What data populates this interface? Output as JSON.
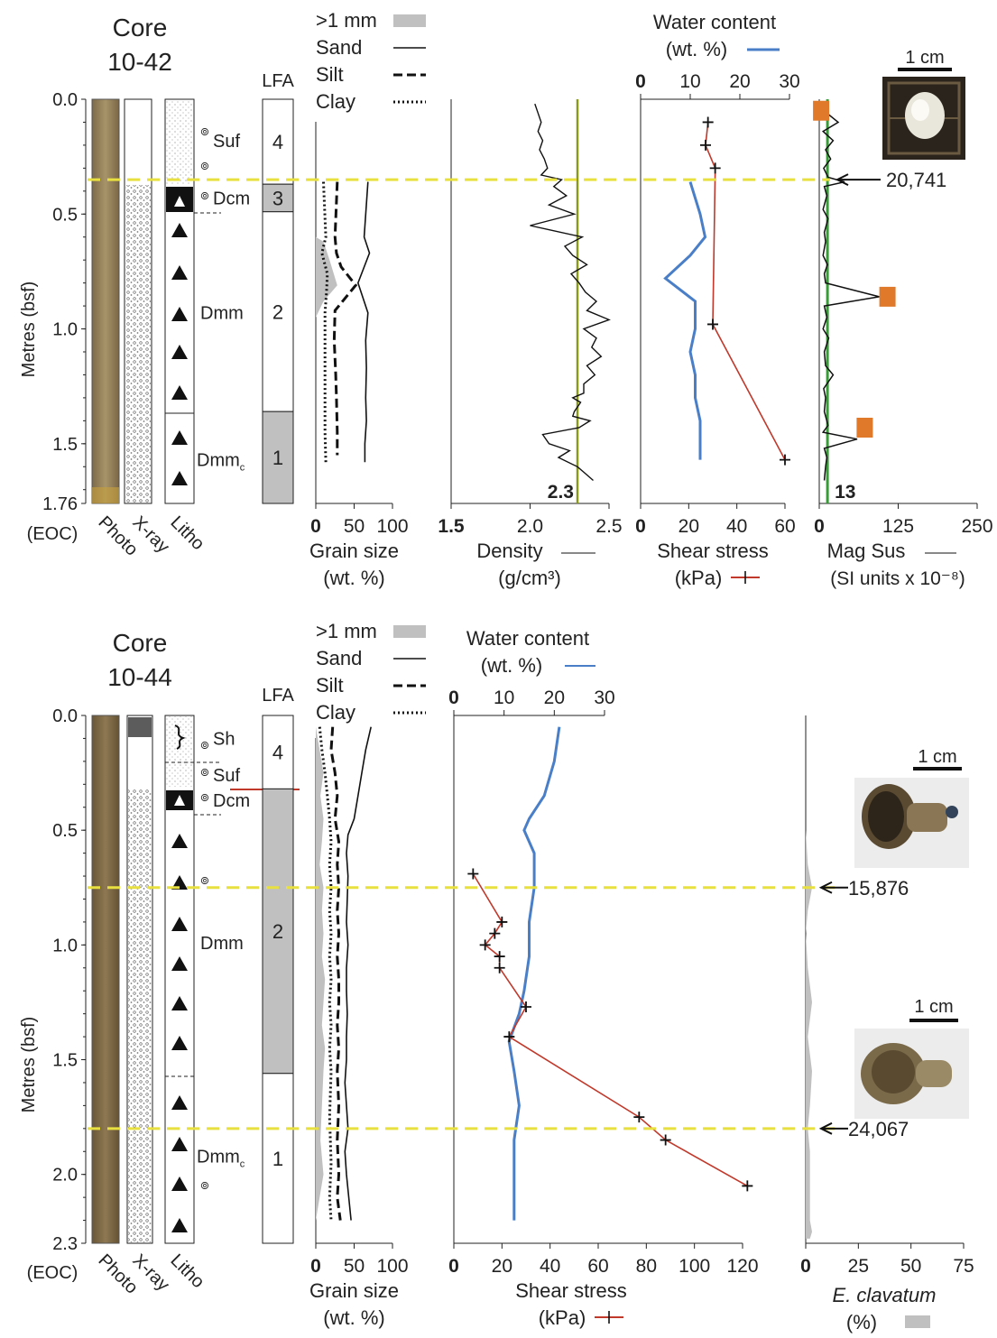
{
  "colors": {
    "water": "#4a7fc8",
    "shear": "#c0392b",
    "density": "#111111",
    "density_ref": "#8a9a1a",
    "magsus_ref": "#3a9a3a",
    "highlight": "#e8e040",
    "gravel": "#c0c0c0",
    "lfa_grey": "#c0c0c0",
    "age_box": "#e07a2a",
    "sed_dark": "#8a7650"
  },
  "panels": [
    {
      "title": "Core\n10-42",
      "core_title_lines": [
        "Core",
        "10-42"
      ],
      "depth_max": 1.76,
      "depth_ticks": [
        "0.0",
        "0.5",
        "1.0",
        "1.5",
        "1.76"
      ],
      "eoc_label": "(EOC)",
      "ylabel": "Metres (bsf)",
      "column_labels": [
        "Photo",
        "X-ray",
        "Litho"
      ],
      "lfa_header": "LFA",
      "facies_labels": [
        {
          "text": "Suf",
          "depth": 0.18
        },
        {
          "text": "Dcm",
          "depth": 0.43
        },
        {
          "text": "Dmm",
          "depth": 0.93
        },
        {
          "text": "Dmm",
          "sub": "c",
          "depth": 1.57
        }
      ],
      "lfa_units": [
        {
          "label": "4",
          "top": 0.0,
          "bottom": 0.37,
          "grey": false
        },
        {
          "label": "3",
          "top": 0.37,
          "bottom": 0.49,
          "grey": true
        },
        {
          "label": "2",
          "top": 0.49,
          "bottom": 1.36,
          "grey": false
        },
        {
          "label": "1",
          "top": 1.36,
          "bottom": 1.76,
          "grey": true
        }
      ],
      "highlight_depths": [
        0.35
      ],
      "legend": [
        {
          "label": ">1 mm",
          "style": "gravel"
        },
        {
          "label": "Sand",
          "style": "solid"
        },
        {
          "label": "Silt",
          "style": "dashed"
        },
        {
          "label": "Clay",
          "style": "dotted"
        }
      ]
    },
    {
      "title": "Core\n10-44",
      "core_title_lines": [
        "Core",
        "10-44"
      ],
      "depth_max": 2.3,
      "depth_ticks": [
        "0.0",
        "0.5",
        "1.0",
        "1.5",
        "2.0",
        "2.3"
      ],
      "eoc_label": "(EOC)",
      "ylabel": "Metres (bsf)",
      "column_labels": [
        "Photo",
        "X-ray",
        "Litho"
      ],
      "lfa_header": "LFA",
      "facies_labels": [
        {
          "text": "Sh",
          "depth": 0.1
        },
        {
          "text": "Suf",
          "depth": 0.26
        },
        {
          "text": "Dcm",
          "depth": 0.37
        },
        {
          "text": "Dmm",
          "depth": 0.99
        },
        {
          "text": "Dmm",
          "sub": "c",
          "depth": 1.92
        }
      ],
      "lfa_units": [
        {
          "label": "4",
          "top": 0.0,
          "bottom": 0.32,
          "grey": false
        },
        {
          "label": "2",
          "top": 0.32,
          "bottom": 1.56,
          "grey": true
        },
        {
          "label": "1",
          "top": 1.56,
          "bottom": 2.3,
          "grey": false
        }
      ],
      "highlight_depths": [
        0.75,
        1.8
      ],
      "legend": [
        {
          "label": ">1 mm",
          "style": "gravel"
        },
        {
          "label": "Sand",
          "style": "solid"
        },
        {
          "label": "Silt",
          "style": "dashed"
        },
        {
          "label": "Clay",
          "style": "dotted"
        }
      ]
    }
  ],
  "chart_data": [
    {
      "type": "line",
      "core": "10-42",
      "title": "Grain size (wt. %)",
      "xlabel": "Grain size",
      "xunit": "(wt. %)",
      "xlim": [
        0,
        100
      ],
      "xticks": [
        "0",
        "50",
        "100"
      ],
      "ylim": [
        0,
        1.76
      ],
      "series": [
        {
          "name": ">1 mm",
          "style": "gravel",
          "x": [
            0,
            0,
            10,
            18,
            28,
            10,
            0,
            0
          ],
          "y": [
            0.57,
            0.6,
            0.62,
            0.7,
            0.81,
            0.88,
            0.95,
            1.0
          ]
        },
        {
          "name": "Sand",
          "style": "solid",
          "x": [
            68,
            63,
            70,
            55,
            68,
            65,
            66,
            65,
            66,
            64,
            64
          ],
          "y": [
            0.36,
            0.6,
            0.67,
            0.8,
            0.93,
            1.05,
            1.17,
            1.3,
            1.4,
            1.5,
            1.58
          ]
        },
        {
          "name": "Silt",
          "style": "dashed",
          "x": [
            28,
            25,
            27,
            33,
            52,
            25,
            24,
            26,
            27,
            28,
            28
          ],
          "y": [
            0.36,
            0.6,
            0.67,
            0.73,
            0.81,
            0.92,
            1.05,
            1.2,
            1.3,
            1.45,
            1.55
          ]
        },
        {
          "name": "Clay",
          "style": "dotted",
          "x": [
            10,
            13,
            8,
            15,
            14,
            12,
            12,
            12,
            12,
            12,
            13
          ],
          "y": [
            0.36,
            0.6,
            0.67,
            0.76,
            0.84,
            0.93,
            1.05,
            1.2,
            1.3,
            1.45,
            1.58
          ]
        }
      ]
    },
    {
      "type": "line",
      "core": "10-42",
      "title": "Density (g/cm3)",
      "xlabel": "Density",
      "xunit": "(g/cm³)",
      "xlim": [
        1.5,
        2.5
      ],
      "xticks": [
        "1.5",
        "2.0",
        "2.5"
      ],
      "ylim": [
        0,
        1.76
      ],
      "reference_value": 2.3,
      "reference_label": "2.3",
      "series": [
        {
          "name": "Density",
          "x": [
            2.03,
            2.05,
            2.07,
            2.05,
            2.08,
            2.06,
            2.09,
            2.11,
            2.07,
            2.2,
            2.15,
            2.23,
            2.12,
            2.28,
            2.0,
            2.33,
            2.22,
            2.27,
            2.36,
            2.26,
            2.31,
            2.35,
            2.42,
            2.36,
            2.5,
            2.34,
            2.42,
            2.39,
            2.45,
            2.36,
            2.41,
            2.34,
            2.34,
            2.27,
            2.32,
            2.28,
            2.27,
            2.38,
            2.31,
            2.08,
            2.12,
            2.25,
            2.18,
            2.3,
            2.35,
            2.4
          ],
          "y": [
            0.02,
            0.06,
            0.1,
            0.14,
            0.18,
            0.22,
            0.26,
            0.3,
            0.33,
            0.35,
            0.38,
            0.42,
            0.46,
            0.5,
            0.55,
            0.6,
            0.64,
            0.68,
            0.72,
            0.76,
            0.8,
            0.84,
            0.88,
            0.92,
            0.96,
            1.0,
            1.04,
            1.08,
            1.12,
            1.16,
            1.2,
            1.24,
            1.28,
            1.3,
            1.32,
            1.36,
            1.38,
            1.4,
            1.43,
            1.46,
            1.5,
            1.53,
            1.56,
            1.6,
            1.63,
            1.66
          ]
        }
      ]
    },
    {
      "type": "line",
      "core": "10-42",
      "title": "Water content / Shear stress",
      "x2label": "Water content",
      "x2unit": "(wt. %)",
      "x2lim": [
        0,
        30
      ],
      "x2ticks": [
        "0",
        "10",
        "20",
        "30"
      ],
      "xlabel": "Shear stress",
      "xunit": "(kPa)",
      "xlim": [
        0,
        60
      ],
      "xticks": [
        "0",
        "20",
        "40",
        "60"
      ],
      "ylim": [
        0,
        1.76
      ],
      "series": [
        {
          "name": "Water content",
          "axis": "top",
          "x": [
            10,
            12,
            13,
            10,
            5,
            11,
            11,
            10,
            11,
            11,
            12,
            12
          ],
          "y": [
            0.36,
            0.5,
            0.6,
            0.68,
            0.78,
            0.88,
            1.0,
            1.1,
            1.2,
            1.3,
            1.4,
            1.57
          ]
        },
        {
          "name": "Shear stress",
          "axis": "bottom",
          "x": [
            28,
            27,
            31,
            30,
            60
          ],
          "y": [
            0.1,
            0.2,
            0.3,
            0.98,
            1.57
          ]
        }
      ]
    },
    {
      "type": "line",
      "core": "10-42",
      "title": "Mag Sus (SI units x 10-8)",
      "xlabel": "Mag Sus",
      "xunit": "(SI units x 10⁻⁸)",
      "xlim": [
        0,
        250
      ],
      "xticks": [
        "0",
        "125",
        "250"
      ],
      "ylim": [
        0,
        1.76
      ],
      "reference_value": 13,
      "reference_label": "13",
      "series": [
        {
          "name": "Mag Sus",
          "x": [
            8,
            12,
            30,
            6,
            22,
            10,
            18,
            7,
            14,
            40,
            8,
            12,
            6,
            14,
            8,
            10,
            6,
            13,
            8,
            10,
            95,
            8,
            12,
            6,
            15,
            8,
            10,
            22,
            7,
            10,
            8,
            14,
            6,
            60,
            8,
            12,
            10,
            8
          ],
          "y": [
            0.02,
            0.06,
            0.1,
            0.14,
            0.18,
            0.22,
            0.26,
            0.3,
            0.34,
            0.36,
            0.38,
            0.42,
            0.48,
            0.52,
            0.58,
            0.62,
            0.68,
            0.72,
            0.76,
            0.8,
            0.86,
            0.9,
            0.95,
            1.0,
            1.04,
            1.1,
            1.16,
            1.2,
            1.26,
            1.3,
            1.36,
            1.42,
            1.45,
            1.48,
            1.52,
            1.56,
            1.6,
            1.66
          ]
        }
      ],
      "age_labels": [
        {
          "text": "20,741",
          "depth": 0.35
        }
      ],
      "age_markers": [
        {
          "depth": 0.05,
          "value": 3
        },
        {
          "depth": 0.86,
          "value": 108
        },
        {
          "depth": 1.43,
          "value": 72
        }
      ],
      "scale_bar": "1 cm"
    },
    {
      "type": "line",
      "core": "10-44",
      "title": "Grain size (wt. %)",
      "xlabel": "Grain size",
      "xunit": "(wt. %)",
      "xlim": [
        0,
        100
      ],
      "xticks": [
        "0",
        "50",
        "100"
      ],
      "ylim": [
        0,
        2.3
      ],
      "series": [
        {
          "name": ">1 mm",
          "style": "gravel",
          "x": [
            0,
            5,
            10,
            6,
            10,
            8,
            5,
            10,
            8,
            10,
            8,
            12,
            10,
            8,
            12,
            10,
            8,
            6,
            10,
            0
          ],
          "y": [
            0.05,
            0.15,
            0.25,
            0.35,
            0.45,
            0.55,
            0.65,
            0.75,
            0.85,
            0.95,
            1.05,
            1.15,
            1.25,
            1.35,
            1.45,
            1.55,
            1.7,
            1.85,
            2.0,
            2.2
          ]
        },
        {
          "name": "Sand",
          "style": "solid",
          "x": [
            72,
            65,
            60,
            55,
            50,
            42,
            40,
            42,
            41,
            40,
            42,
            40,
            40,
            41,
            40,
            40,
            38,
            40,
            42,
            38,
            40,
            46
          ],
          "y": [
            0.05,
            0.15,
            0.25,
            0.35,
            0.45,
            0.52,
            0.6,
            0.7,
            0.8,
            0.9,
            1.0,
            1.1,
            1.2,
            1.3,
            1.4,
            1.5,
            1.6,
            1.7,
            1.8,
            1.9,
            2.0,
            2.2
          ]
        },
        {
          "name": "Silt",
          "style": "dashed",
          "x": [
            22,
            20,
            25,
            28,
            25,
            30,
            28,
            30,
            28,
            30,
            28,
            30,
            30,
            28,
            30,
            28,
            30,
            28,
            30,
            28,
            32
          ],
          "y": [
            0.05,
            0.15,
            0.25,
            0.35,
            0.45,
            0.55,
            0.65,
            0.75,
            0.85,
            0.95,
            1.05,
            1.15,
            1.25,
            1.35,
            1.45,
            1.55,
            1.7,
            1.85,
            2.0,
            2.1,
            2.2
          ]
        },
        {
          "name": "Clay",
          "style": "dotted",
          "x": [
            5,
            8,
            12,
            15,
            18,
            20,
            18,
            20,
            18,
            20,
            18,
            20,
            18,
            20,
            18,
            20,
            18,
            20,
            18,
            20
          ],
          "y": [
            0.05,
            0.15,
            0.25,
            0.35,
            0.45,
            0.55,
            0.65,
            0.75,
            0.85,
            0.95,
            1.05,
            1.15,
            1.25,
            1.35,
            1.45,
            1.55,
            1.75,
            1.95,
            2.1,
            2.2
          ]
        }
      ]
    },
    {
      "type": "line",
      "core": "10-44",
      "title": "Water content / Shear stress",
      "x2label": "Water content",
      "x2unit": "(wt. %)",
      "x2lim": [
        0,
        30
      ],
      "x2ticks": [
        "0",
        "10",
        "20",
        "30"
      ],
      "xlabel": "Shear stress",
      "xunit": "(kPa)",
      "xlim": [
        0,
        120
      ],
      "xticks": [
        "0",
        "20",
        "40",
        "60",
        "80",
        "100",
        "120"
      ],
      "ylim": [
        0,
        2.3
      ],
      "series": [
        {
          "name": "Water content",
          "axis": "top",
          "x": [
            21,
            20,
            18,
            15,
            14,
            16,
            16,
            15,
            15,
            14,
            13,
            11,
            12,
            13,
            12,
            12,
            12
          ],
          "y": [
            0.05,
            0.2,
            0.35,
            0.45,
            0.5,
            0.6,
            0.75,
            0.9,
            1.05,
            1.2,
            1.3,
            1.42,
            1.55,
            1.7,
            1.85,
            2.0,
            2.2
          ]
        },
        {
          "name": "Shear stress",
          "axis": "bottom",
          "x": [
            8,
            20,
            17,
            13,
            19,
            19,
            30,
            23,
            77,
            88,
            122
          ],
          "y": [
            0.69,
            0.9,
            0.95,
            1.0,
            1.05,
            1.1,
            1.27,
            1.4,
            1.75,
            1.85,
            2.05
          ]
        }
      ]
    },
    {
      "type": "area",
      "core": "10-44",
      "title": "E. clavatum (%)",
      "xlabel": "E. clavatum",
      "xunit": "(%)",
      "xlim": [
        0,
        75
      ],
      "xticks": [
        "0",
        "25",
        "50",
        "75"
      ],
      "ylim": [
        0,
        2.3
      ],
      "series": [
        {
          "name": "E. clavatum",
          "x": [
            0,
            1,
            3,
            1,
            0,
            1,
            3,
            1,
            3,
            2,
            1,
            2,
            2,
            2,
            2,
            3,
            2
          ],
          "y": [
            0.5,
            0.65,
            0.75,
            0.85,
            0.95,
            1.1,
            1.25,
            1.4,
            1.55,
            1.7,
            1.8,
            1.9,
            2.0,
            2.1,
            2.2,
            2.25,
            2.28
          ]
        }
      ],
      "age_labels": [
        {
          "text": "15,876",
          "depth": 0.75
        },
        {
          "text": "24,067",
          "depth": 1.8
        }
      ],
      "scale_bars": [
        "1 cm",
        "1 cm"
      ]
    }
  ]
}
